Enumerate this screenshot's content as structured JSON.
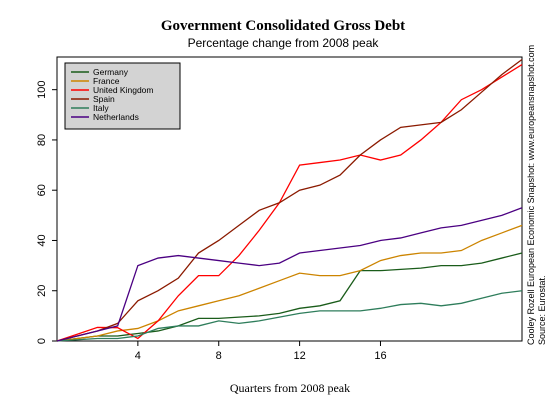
{
  "chart_data": {
    "type": "line",
    "title": "Government Consolidated Gross Debt",
    "subtitle": "Percentage change from 2008 peak",
    "x_label": "Quarters from 2008 peak",
    "source": "Source: Eurostat.",
    "credit": "Cooley Rozell European Economic Snapshot: www.europeansnapshot.com",
    "x": [
      0,
      1,
      2,
      3,
      4,
      5,
      6,
      7,
      8,
      9,
      10,
      11,
      12,
      13,
      14,
      15,
      16,
      17,
      18,
      19,
      20,
      21,
      22,
      23
    ],
    "xlim": [
      0,
      23
    ],
    "xticks": [
      4,
      8,
      12,
      16
    ],
    "ylim": [
      0,
      113
    ],
    "yticks": [
      0,
      20,
      40,
      60,
      80,
      100
    ],
    "legend": "top-left",
    "series": [
      {
        "name": "Germany",
        "color": "#1a5c1a",
        "values": [
          0,
          1,
          2,
          2,
          3,
          4,
          6,
          9,
          9,
          9.5,
          10,
          11,
          13,
          14,
          16,
          28,
          28,
          28.5,
          29,
          30,
          30,
          31,
          33,
          35
        ]
      },
      {
        "name": "France",
        "color": "#cc8400",
        "values": [
          0,
          1,
          2,
          4,
          5,
          8,
          12,
          14,
          16,
          18,
          21,
          24,
          27,
          26,
          26,
          28,
          32,
          34,
          35,
          35,
          36,
          40,
          43,
          46
        ]
      },
      {
        "name": "United Kingdom",
        "color": "#ff0000",
        "values": [
          0,
          2.7,
          5.4,
          5.3,
          1,
          8,
          18,
          26,
          26,
          34,
          44,
          55,
          70,
          71,
          72,
          74,
          72,
          74,
          80,
          87,
          96,
          100,
          105,
          110
        ]
      },
      {
        "name": "Spain",
        "color": "#8b1a00",
        "values": [
          0,
          2,
          4,
          7,
          16,
          20,
          25,
          35,
          40,
          46,
          52,
          55,
          60,
          62,
          66,
          74,
          80,
          85,
          86,
          87,
          92,
          99,
          106,
          112
        ]
      },
      {
        "name": "Italy",
        "color": "#2e7d5b",
        "values": [
          0,
          0.5,
          1,
          1,
          2,
          5,
          6,
          6,
          8,
          7,
          8,
          9.5,
          11,
          12,
          12,
          12,
          13,
          14.5,
          15,
          14,
          15,
          17,
          19,
          20
        ]
      },
      {
        "name": "Netherlands",
        "color": "#4b0082",
        "values": [
          0,
          2,
          4,
          6,
          30,
          33,
          34,
          33,
          32,
          31,
          30,
          31,
          35,
          36,
          37,
          38,
          40,
          41,
          43,
          45,
          46,
          48,
          50,
          53
        ]
      }
    ]
  }
}
